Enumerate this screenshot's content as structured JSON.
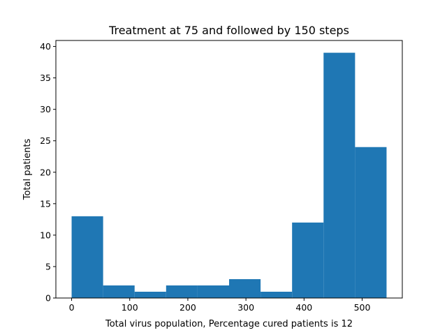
{
  "chart_data": {
    "type": "bar",
    "title": "Treatment at 75 and followed by 150 steps",
    "xlabel": "Total virus population, Percentage cured patients is 12",
    "ylabel": "Total patients",
    "bin_edges": [
      0,
      54.2,
      108.4,
      162.6,
      216.8,
      271,
      325.2,
      379.4,
      433.6,
      487.8,
      542
    ],
    "values": [
      13,
      2,
      1,
      2,
      2,
      3,
      1,
      12,
      39,
      24
    ],
    "xlim": [
      -27.1,
      569.1
    ],
    "ylim": [
      0,
      40.95
    ],
    "xticks": [
      0,
      100,
      200,
      300,
      400,
      500
    ],
    "xtick_labels": [
      "0",
      "100",
      "200",
      "300",
      "400",
      "500"
    ],
    "yticks": [
      0,
      5,
      10,
      15,
      20,
      25,
      30,
      35,
      40
    ],
    "ytick_labels": [
      "0",
      "5",
      "10",
      "15",
      "20",
      "25",
      "30",
      "35",
      "40"
    ],
    "bar_color": "#1f77b4",
    "grid": false,
    "legend": "none"
  }
}
